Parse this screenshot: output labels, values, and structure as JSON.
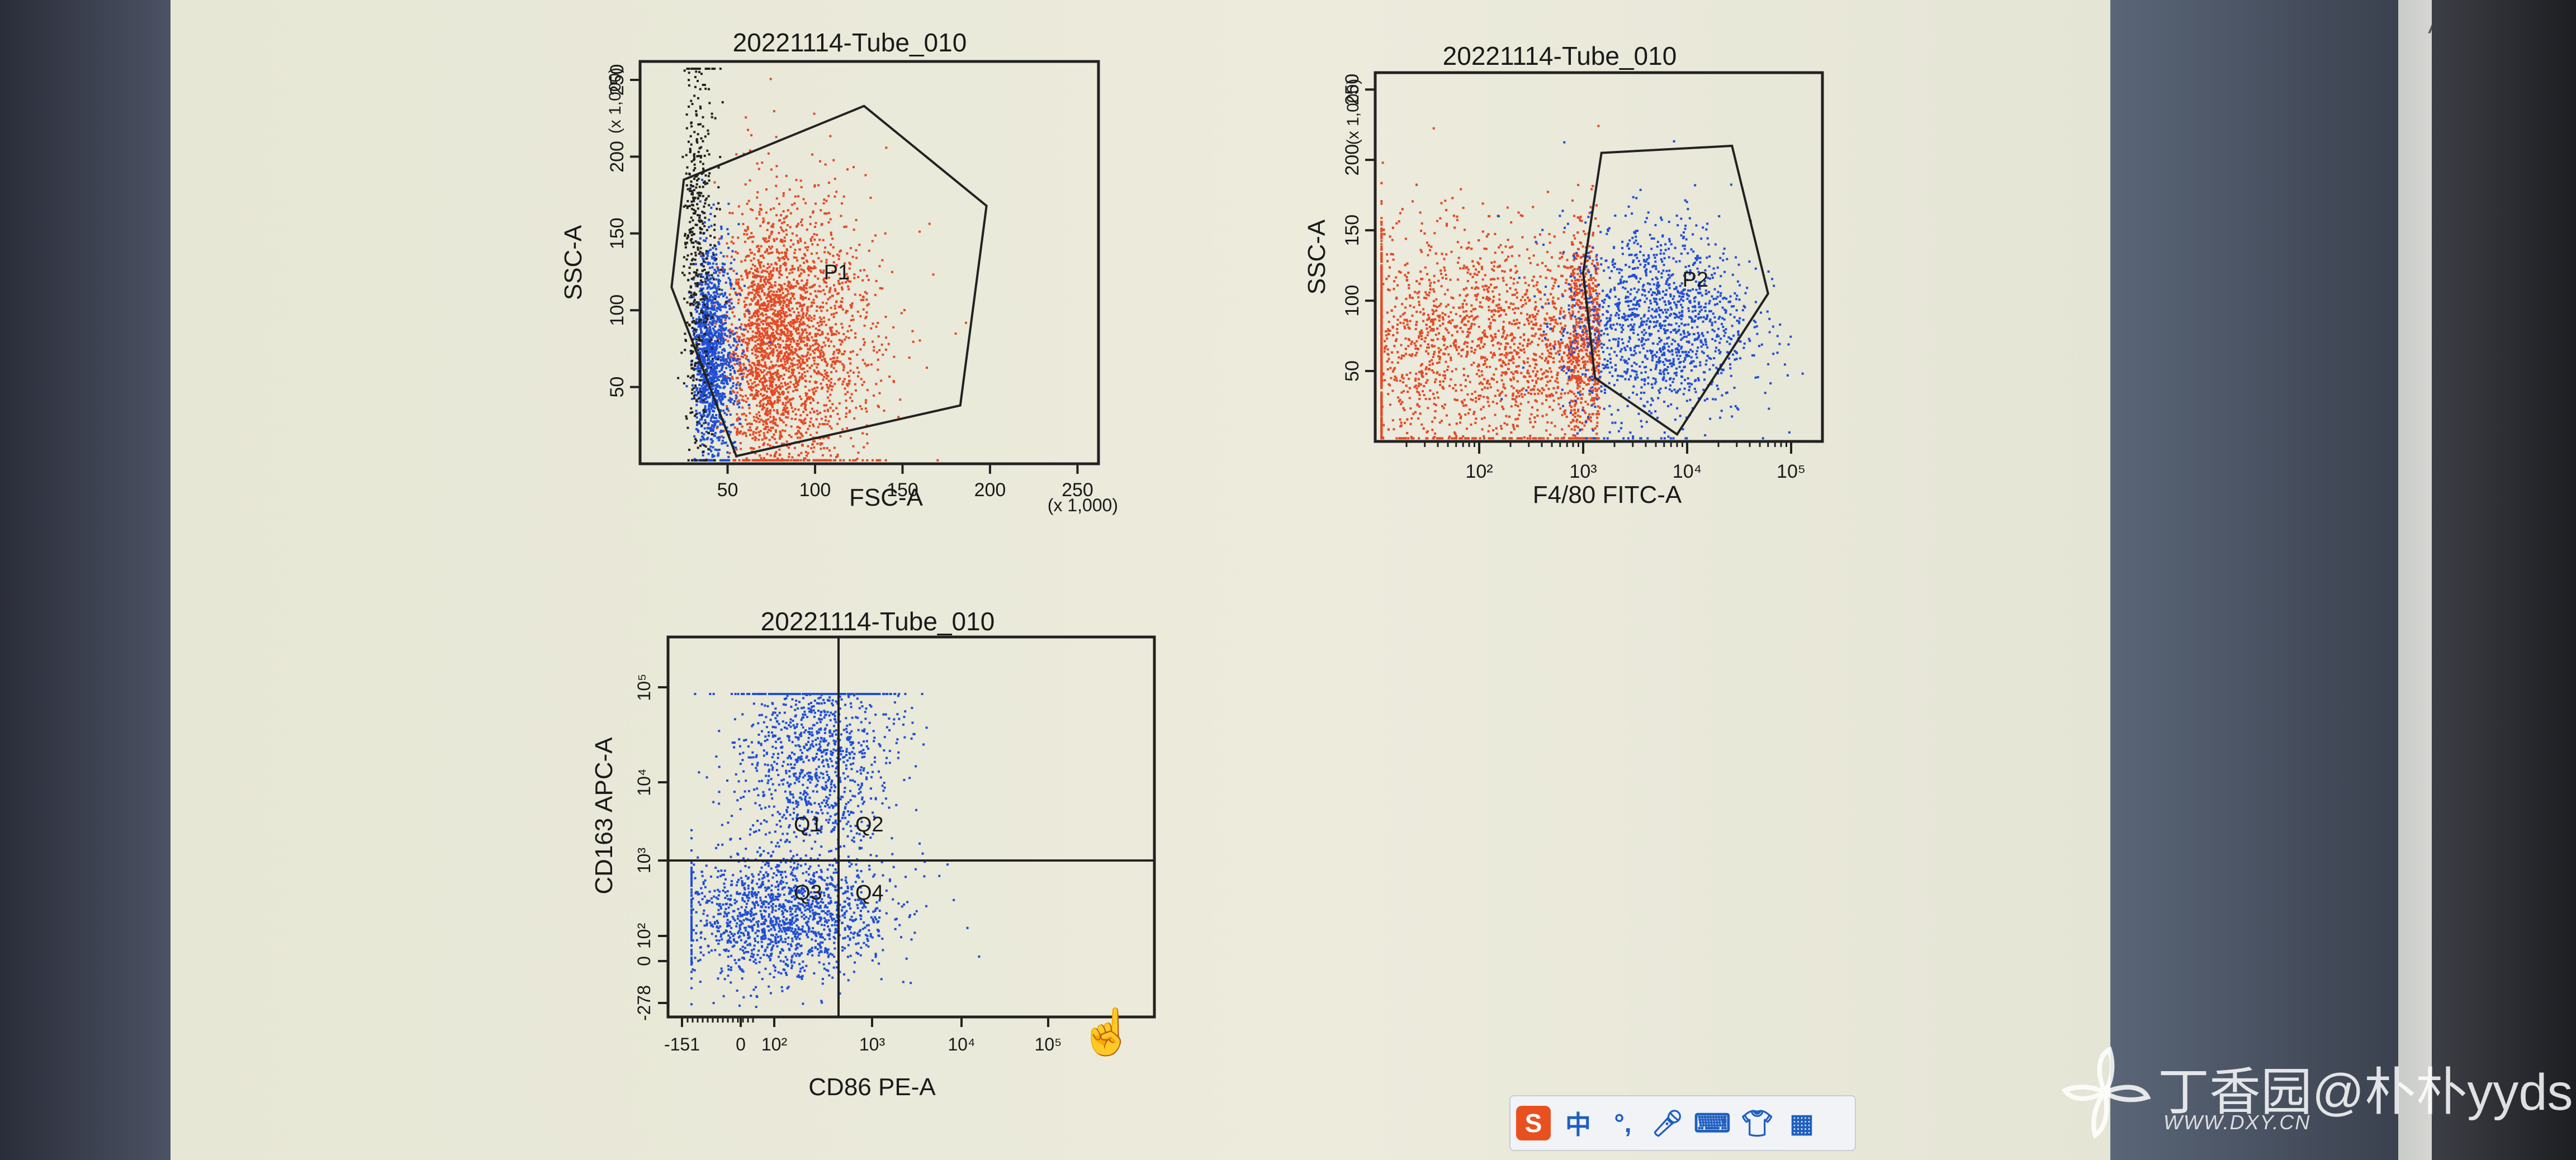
{
  "chart_data": [
    {
      "type": "scatter",
      "title": "20221114-Tube_010",
      "xlabel": "FSC-A",
      "ylabel": "SSC-A",
      "x_scale_note": "(x 1,000)",
      "y_scale_note": "(x 1,000)",
      "xlim": [
        0,
        262
      ],
      "ylim": [
        0,
        262
      ],
      "xticks": [
        50,
        100,
        150,
        200,
        250
      ],
      "yticks": [
        50,
        100,
        150,
        200,
        250
      ],
      "gate": {
        "name": "P1",
        "polygon": [
          [
            25,
            185
          ],
          [
            128,
            233
          ],
          [
            198,
            168
          ],
          [
            183,
            38
          ],
          [
            55,
            5
          ],
          [
            18,
            115
          ]
        ],
        "label_pos": [
          105,
          120
        ]
      },
      "series": [
        {
          "color": "#e34a26",
          "points": 2600,
          "centroid": [
            65,
            80
          ],
          "spread": [
            30,
            45
          ]
        },
        {
          "color": "#1f4ed8",
          "points": 1300,
          "centroid": [
            35,
            70
          ],
          "spread": [
            10,
            35
          ]
        },
        {
          "color": "#222222",
          "points": 500,
          "centroid": [
            28,
            140
          ],
          "spread": [
            8,
            70
          ]
        }
      ]
    },
    {
      "type": "scatter",
      "title": "20221114-Tube_010",
      "xlabel": "F4/80 FITC-A",
      "ylabel": "SSC-A",
      "y_scale_note": "(x 1,000)",
      "x_scale": "log",
      "xlim": [
        10,
        200000
      ],
      "ylim": [
        0,
        262
      ],
      "xticks": [
        "10²",
        "10³",
        "10⁴",
        "10⁵"
      ],
      "yticks": [
        50,
        100,
        150,
        200,
        250
      ],
      "gate": {
        "name": "P2",
        "polygon": [
          [
            1500,
            205
          ],
          [
            27000,
            210
          ],
          [
            60000,
            105
          ],
          [
            8000,
            5
          ],
          [
            1300,
            45
          ],
          [
            1000,
            120
          ]
        ],
        "label_pos": [
          9000,
          110
        ]
      },
      "series": [
        {
          "color": "#e34a26",
          "points": 3600,
          "centroid": [
            150,
            70
          ],
          "spread": [
            1.1,
            45
          ]
        },
        {
          "color": "#1f4ed8",
          "points": 1400,
          "centroid": [
            5000,
            85
          ],
          "spread": [
            0.45,
            40
          ]
        }
      ]
    },
    {
      "type": "scatter",
      "title": "20221114-Tube_010",
      "xlabel": "CD86 PE-A",
      "ylabel": "CD163 APC-A",
      "x_scale": "biexponential",
      "y_scale": "biexponential",
      "xticks": [
        "-151",
        "0",
        "10²",
        "10³",
        "10⁴",
        "10⁵"
      ],
      "yticks": [
        "-278",
        "0",
        "10²",
        "10³",
        "10⁴",
        "10⁵"
      ],
      "quadrants": [
        "Q1",
        "Q2",
        "Q3",
        "Q4"
      ],
      "series": [
        {
          "color": "#1f4ed8",
          "points": 2600
        }
      ]
    }
  ],
  "ime_bar": {
    "logo": "S",
    "lang": "中",
    "items": [
      "punctuation-icon",
      "microphone-icon",
      "keyboard-icon",
      "shirt-icon",
      "apps-icon"
    ]
  },
  "watermark": {
    "text": "丁香园@朴朴yyds",
    "sub": "WWW.DXY.CN"
  }
}
